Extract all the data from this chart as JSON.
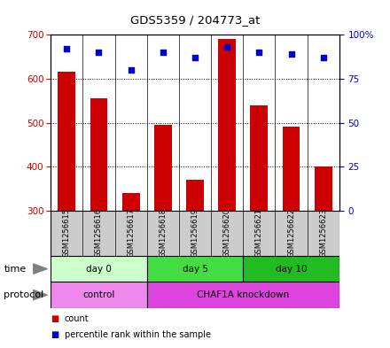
{
  "title": "GDS5359 / 204773_at",
  "samples": [
    "GSM1256615",
    "GSM1256616",
    "GSM1256617",
    "GSM1256618",
    "GSM1256619",
    "GSM1256620",
    "GSM1256621",
    "GSM1256622",
    "GSM1256623"
  ],
  "counts": [
    615,
    555,
    340,
    495,
    370,
    690,
    540,
    490,
    400
  ],
  "percentile_ranks": [
    92,
    90,
    80,
    90,
    87,
    93,
    90,
    89,
    87
  ],
  "ylim_left": [
    300,
    700
  ],
  "ylim_right": [
    0,
    100
  ],
  "yticks_left": [
    300,
    400,
    500,
    600,
    700
  ],
  "yticks_right": [
    0,
    25,
    50,
    75,
    100
  ],
  "ytick_labels_right": [
    "0",
    "25",
    "50",
    "75",
    "100%"
  ],
  "bar_color": "#cc0000",
  "dot_color": "#0000cc",
  "bar_bottom": 300,
  "time_groups": [
    {
      "label": "day 0",
      "start": 0,
      "end": 3,
      "color": "#ccffcc"
    },
    {
      "label": "day 5",
      "start": 3,
      "end": 6,
      "color": "#44dd44"
    },
    {
      "label": "day 10",
      "start": 6,
      "end": 9,
      "color": "#22bb22"
    }
  ],
  "protocol_groups": [
    {
      "label": "control",
      "start": 0,
      "end": 3,
      "color": "#ee88ee"
    },
    {
      "label": "CHAF1A knockdown",
      "start": 3,
      "end": 9,
      "color": "#dd44dd"
    }
  ],
  "time_row_label": "time",
  "protocol_row_label": "protocol",
  "legend_items": [
    {
      "color": "#cc0000",
      "label": "count"
    },
    {
      "color": "#0000cc",
      "label": "percentile rank within the sample"
    }
  ],
  "sample_box_color": "#cccccc",
  "background_color": "#ffffff",
  "fig_width": 4.4,
  "fig_height": 3.93,
  "dpi": 100
}
